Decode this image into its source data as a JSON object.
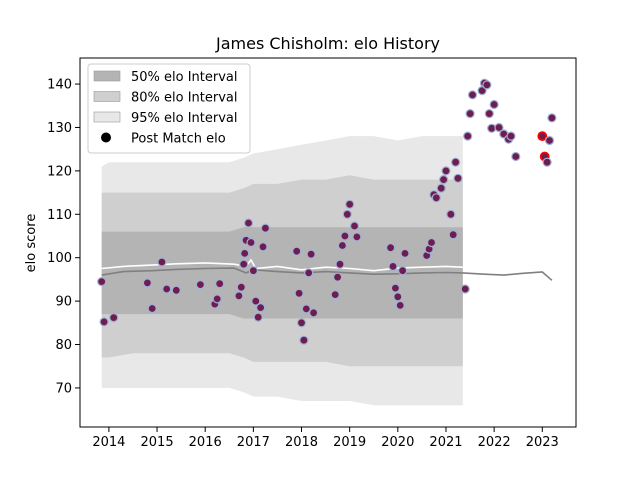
{
  "chart_data": {
    "type": "scatter",
    "title": "James Chisholm: elo History",
    "xlabel": "",
    "ylabel": "elo score",
    "xlim": [
      2013.4,
      2023.7
    ],
    "ylim": [
      61,
      146
    ],
    "x_ticks": [
      2014,
      2015,
      2016,
      2017,
      2018,
      2019,
      2020,
      2021,
      2022,
      2023
    ],
    "y_ticks": [
      70,
      80,
      90,
      100,
      110,
      120,
      130,
      140
    ],
    "legend_position": "top-left",
    "grid": false,
    "legend": [
      {
        "label": "50% elo Interval",
        "swatch": "band50"
      },
      {
        "label": "80% elo Interval",
        "swatch": "band80"
      },
      {
        "label": "95% elo Interval",
        "swatch": "band95"
      },
      {
        "label": "Post Match elo",
        "swatch": "dot"
      }
    ],
    "colors": {
      "band50": "#b4b4b4",
      "band80": "#cfcfcf",
      "band95": "#e8e8e8",
      "median_line": "#808080",
      "mean_line": "#ffffff",
      "dot_fill": "#6e1e4e",
      "dot_edge": "#9fb0d8",
      "dot_highlight_edge": "#ff0000"
    },
    "bands": {
      "x": [
        2013.85,
        2014.0,
        2014.5,
        2015.0,
        2015.5,
        2016.0,
        2016.5,
        2016.8,
        2017.0,
        2017.5,
        2018.0,
        2018.5,
        2019.0,
        2019.5,
        2020.0,
        2020.5,
        2021.0,
        2021.35
      ],
      "p95_hi": [
        121,
        122,
        122,
        122,
        122,
        122,
        122,
        123,
        124,
        125,
        126,
        127,
        128,
        128,
        127,
        128,
        128,
        128
      ],
      "p80_hi": [
        115,
        115,
        115,
        115,
        115,
        115,
        115,
        116,
        117,
        117,
        118,
        118,
        119,
        118,
        118,
        118,
        118,
        118
      ],
      "p50_hi": [
        106,
        106,
        106,
        106,
        106,
        106,
        106,
        107,
        107,
        107,
        107,
        107,
        107,
        107,
        107,
        107,
        107,
        107
      ],
      "p50_lo": [
        87,
        87,
        87,
        87,
        87,
        87,
        87,
        86,
        86,
        86,
        86,
        86,
        86,
        86,
        86,
        86,
        86,
        86
      ],
      "p80_lo": [
        77,
        77,
        78,
        78,
        78,
        78,
        78,
        77,
        76,
        76,
        76,
        76,
        75,
        75,
        75,
        75,
        75,
        75
      ],
      "p95_lo": [
        70,
        70,
        70,
        70,
        70,
        70,
        70,
        69,
        68,
        68,
        67,
        67,
        67,
        66,
        66,
        66,
        66,
        66
      ]
    },
    "median_line": {
      "x": [
        2013.85,
        2014.3,
        2014.9,
        2015.4,
        2016.0,
        2016.6,
        2016.85,
        2017.0,
        2017.5,
        2018.0,
        2018.5,
        2019.0,
        2019.5,
        2020.0,
        2020.5,
        2021.0,
        2021.35,
        2021.8,
        2022.2,
        2022.6,
        2023.0,
        2023.2
      ],
      "y": [
        96.0,
        96.8,
        97.0,
        97.3,
        97.5,
        97.6,
        96.5,
        97.2,
        96.8,
        96.5,
        96.8,
        96.5,
        96.2,
        96.3,
        96.5,
        96.6,
        96.5,
        96.2,
        96.0,
        96.4,
        96.7,
        94.8
      ]
    },
    "mean_line": {
      "x": [
        2013.85,
        2014.3,
        2014.9,
        2015.4,
        2016.0,
        2016.6,
        2016.85,
        2016.95,
        2017.05,
        2017.5,
        2018.0,
        2018.5,
        2019.0,
        2019.5,
        2020.0,
        2020.5,
        2021.0,
        2021.35
      ],
      "y": [
        97.5,
        98.0,
        98.3,
        98.6,
        98.8,
        98.5,
        98.0,
        99.5,
        97.5,
        98.0,
        97.2,
        97.8,
        97.5,
        97.0,
        97.6,
        97.8,
        98.0,
        97.8
      ]
    },
    "points": {
      "x": [
        2013.85,
        2013.9,
        2014.1,
        2014.8,
        2014.9,
        2015.1,
        2015.2,
        2015.4,
        2015.9,
        2016.2,
        2016.25,
        2016.3,
        2016.7,
        2016.75,
        2016.8,
        2016.82,
        2016.85,
        2016.9,
        2016.95,
        2017.0,
        2017.05,
        2017.1,
        2017.15,
        2017.2,
        2017.25,
        2017.9,
        2017.95,
        2018.0,
        2018.05,
        2018.1,
        2018.15,
        2018.2,
        2018.25,
        2018.7,
        2018.75,
        2018.8,
        2018.85,
        2018.9,
        2018.95,
        2019.0,
        2019.1,
        2019.15,
        2019.85,
        2019.9,
        2019.95,
        2020.0,
        2020.05,
        2020.1,
        2020.15,
        2020.6,
        2020.65,
        2020.7,
        2020.75,
        2020.8,
        2020.9,
        2020.95,
        2021.0,
        2021.1,
        2021.15,
        2021.2,
        2021.25,
        2021.4,
        2021.45,
        2021.5,
        2021.55,
        2021.75,
        2021.8,
        2021.85,
        2021.9,
        2021.95,
        2022.0,
        2022.1,
        2022.2,
        2022.3,
        2022.35,
        2022.45,
        2023.0,
        2023.05,
        2023.1,
        2023.15,
        2023.2
      ],
      "y": [
        94.5,
        85.2,
        86.2,
        94.2,
        88.3,
        99.0,
        92.8,
        92.5,
        93.8,
        89.3,
        90.5,
        94.0,
        91.2,
        93.2,
        98.5,
        101.0,
        104.0,
        108.0,
        103.5,
        97.0,
        90.0,
        86.3,
        88.5,
        102.5,
        106.8,
        101.5,
        91.8,
        85.0,
        81.0,
        88.2,
        96.5,
        100.8,
        87.3,
        91.5,
        95.5,
        98.5,
        102.8,
        105.0,
        110.0,
        112.3,
        107.3,
        104.8,
        102.3,
        98.0,
        93.0,
        91.0,
        89.0,
        97.0,
        101.0,
        100.5,
        102.0,
        103.5,
        114.5,
        113.8,
        116.0,
        118.0,
        120.0,
        110.0,
        105.3,
        122.0,
        118.3,
        92.8,
        128.0,
        133.2,
        137.5,
        138.5,
        140.2,
        139.8,
        133.2,
        129.8,
        135.3,
        130.0,
        128.5,
        127.3,
        128.0,
        123.3,
        128.0,
        123.3,
        122.0,
        127.0,
        132.2
      ],
      "highlight": [
        false,
        false,
        false,
        false,
        false,
        false,
        false,
        false,
        false,
        false,
        false,
        false,
        false,
        false,
        false,
        false,
        false,
        false,
        false,
        false,
        false,
        false,
        false,
        false,
        false,
        false,
        false,
        false,
        false,
        false,
        false,
        false,
        false,
        false,
        false,
        false,
        false,
        false,
        false,
        false,
        false,
        false,
        false,
        false,
        false,
        false,
        false,
        false,
        false,
        false,
        false,
        false,
        false,
        false,
        false,
        false,
        false,
        false,
        false,
        false,
        false,
        false,
        false,
        false,
        false,
        false,
        false,
        false,
        false,
        false,
        false,
        false,
        false,
        false,
        false,
        false,
        true,
        true,
        false,
        false,
        false
      ]
    }
  }
}
